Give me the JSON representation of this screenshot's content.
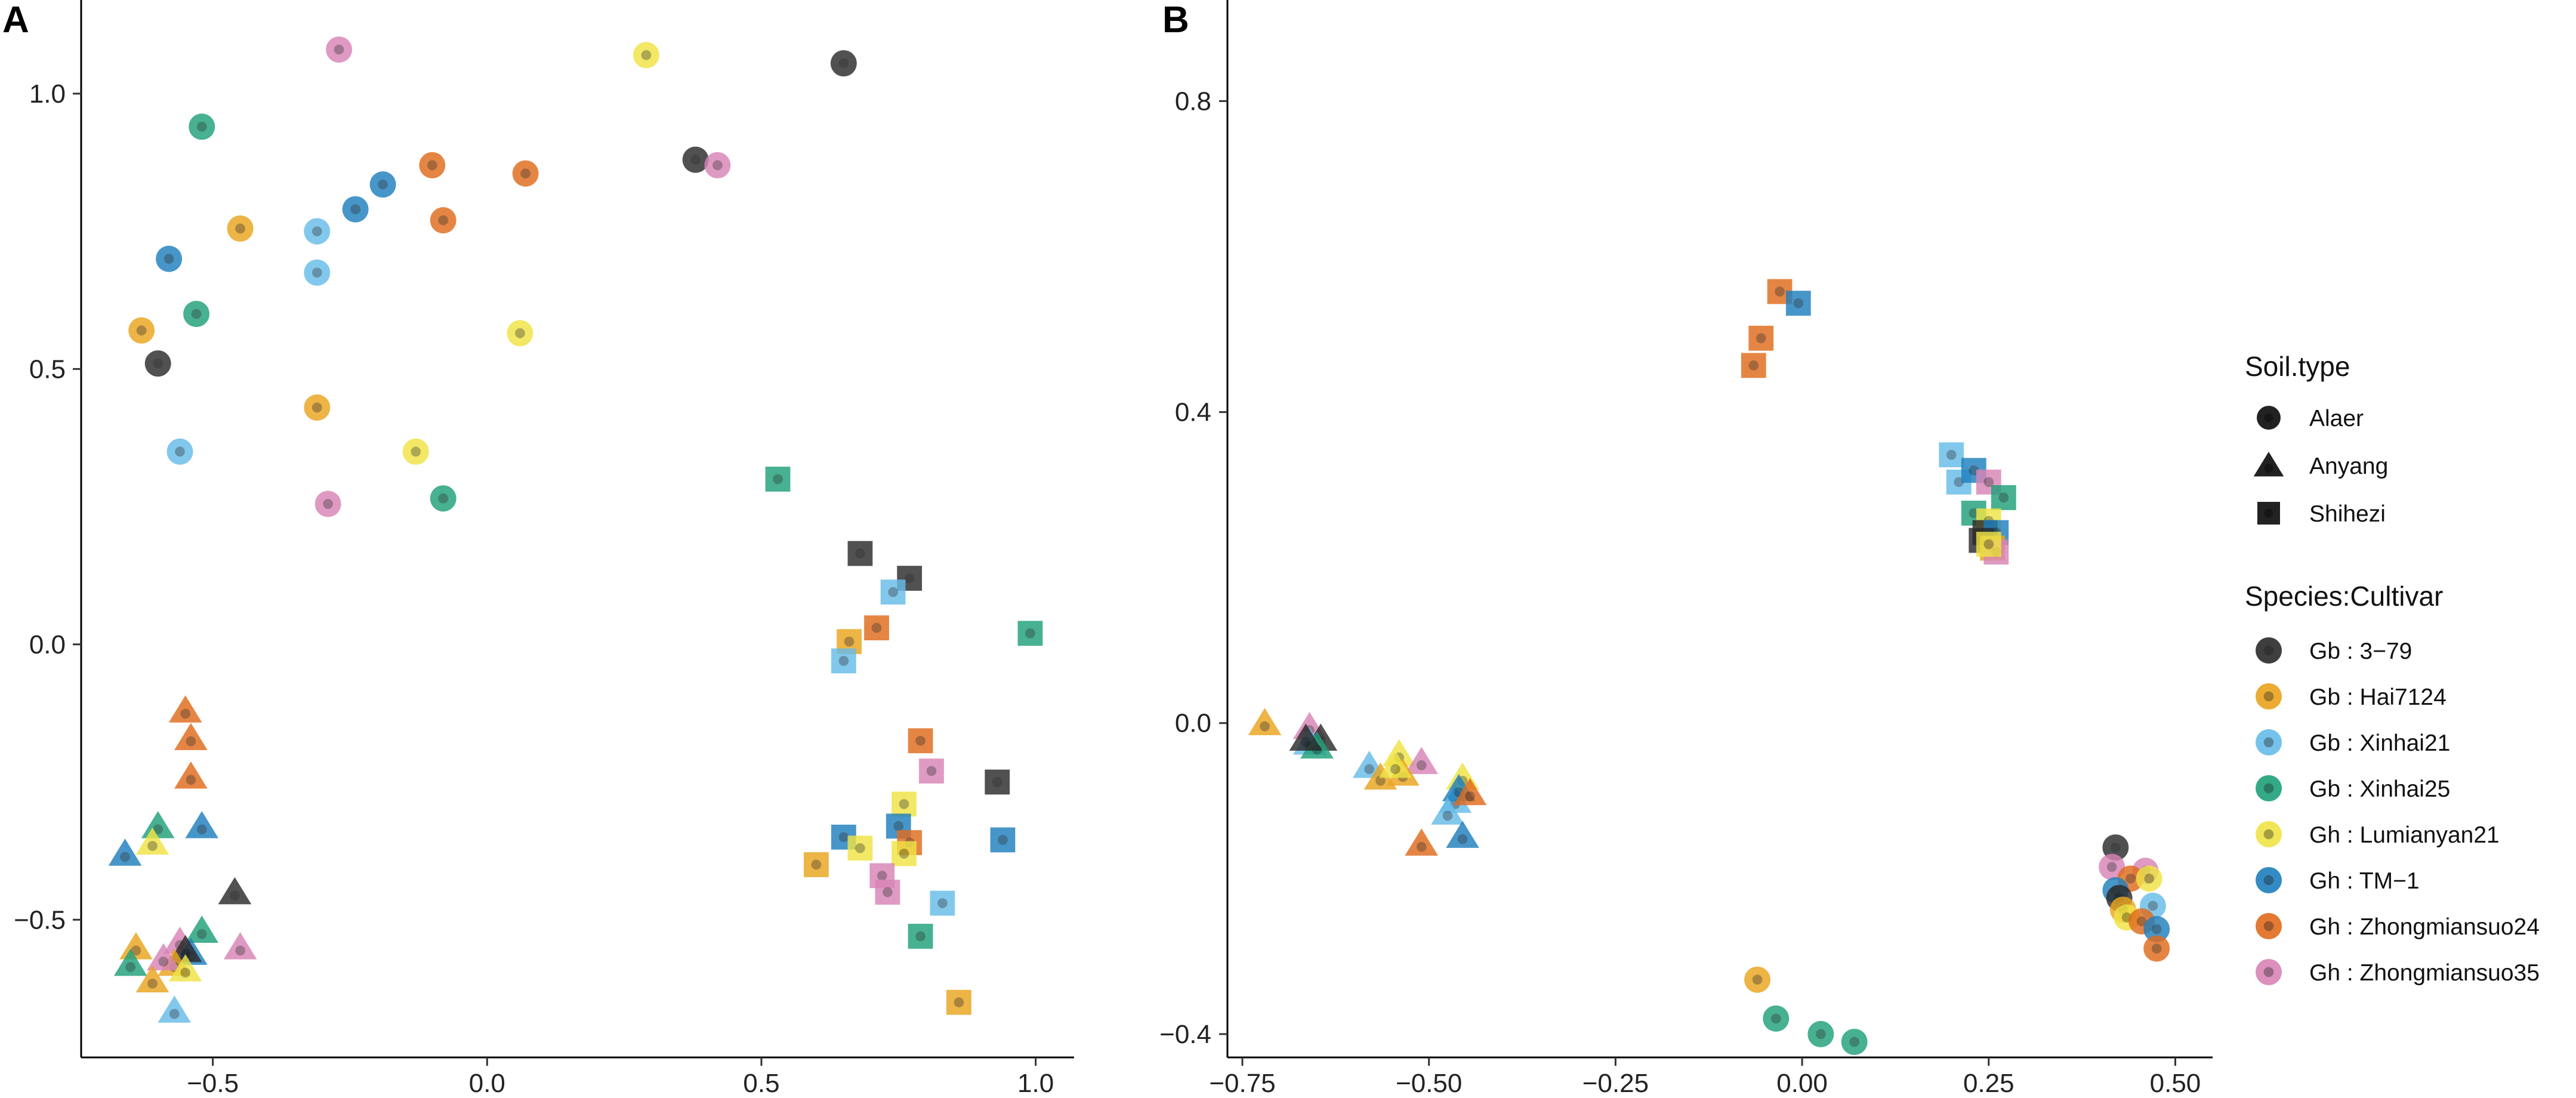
{
  "colors": {
    "3-79": "#2b2b2b",
    "Hai7124": "#eaa41e",
    "Xinhai21": "#67bce9",
    "Xinhai25": "#1fa07a",
    "Lumianyan21": "#f0e445",
    "TM-1": "#1f7fbe",
    "Zhongmiansuo24": "#e06b1c",
    "Zhongmiansuo35": "#d884b6"
  },
  "legend": {
    "soil_title": "Soil.type",
    "soil_items": [
      {
        "label": "Alaer",
        "shape": "circle"
      },
      {
        "label": "Anyang",
        "shape": "triangle"
      },
      {
        "label": "Shihezi",
        "shape": "square"
      }
    ],
    "species_title": "Species:Cultivar",
    "species_items": [
      {
        "label": "Gb : 3−79",
        "key": "3-79"
      },
      {
        "label": "Gb : Hai7124",
        "key": "Hai7124"
      },
      {
        "label": "Gb : Xinhai21",
        "key": "Xinhai21"
      },
      {
        "label": "Gb : Xinhai25",
        "key": "Xinhai25"
      },
      {
        "label": "Gh : Lumianyan21",
        "key": "Lumianyan21"
      },
      {
        "label": "Gh : TM−1",
        "key": "TM-1"
      },
      {
        "label": "Gh : Zhongmiansuo24",
        "key": "Zhongmiansuo24"
      },
      {
        "label": "Gh : Zhongmiansuo35",
        "key": "Zhongmiansuo35"
      }
    ]
  },
  "chart_data": [
    {
      "panel": "A",
      "type": "scatter",
      "xlim": [
        -0.74,
        1.07
      ],
      "ylim": [
        -0.75,
        1.17
      ],
      "xticks": [
        -0.5,
        0.0,
        0.5,
        1.0
      ],
      "xtick_labels": [
        "−0.5",
        "0.0",
        "0.5",
        "1.0"
      ],
      "yticks": [
        -0.5,
        0.0,
        0.5,
        1.0
      ],
      "ytick_labels": [
        "−0.5",
        "0.0",
        "0.5",
        "1.0"
      ],
      "points": [
        {
          "x": -0.27,
          "y": 1.08,
          "shape": "circle",
          "cultivar": "Zhongmiansuo35"
        },
        {
          "x": 0.29,
          "y": 1.07,
          "shape": "circle",
          "cultivar": "Lumianyan21"
        },
        {
          "x": 0.65,
          "y": 1.055,
          "shape": "circle",
          "cultivar": "3-79"
        },
        {
          "x": -0.52,
          "y": 0.94,
          "shape": "circle",
          "cultivar": "Xinhai25"
        },
        {
          "x": 0.38,
          "y": 0.88,
          "shape": "circle",
          "cultivar": "3-79"
        },
        {
          "x": 0.42,
          "y": 0.87,
          "shape": "circle",
          "cultivar": "Zhongmiansuo35"
        },
        {
          "x": -0.1,
          "y": 0.87,
          "shape": "circle",
          "cultivar": "Zhongmiansuo24"
        },
        {
          "x": 0.07,
          "y": 0.855,
          "shape": "circle",
          "cultivar": "Zhongmiansuo24"
        },
        {
          "x": -0.19,
          "y": 0.835,
          "shape": "circle",
          "cultivar": "TM-1"
        },
        {
          "x": -0.24,
          "y": 0.79,
          "shape": "circle",
          "cultivar": "TM-1"
        },
        {
          "x": -0.08,
          "y": 0.77,
          "shape": "circle",
          "cultivar": "Zhongmiansuo24"
        },
        {
          "x": -0.45,
          "y": 0.755,
          "shape": "circle",
          "cultivar": "Hai7124"
        },
        {
          "x": -0.31,
          "y": 0.75,
          "shape": "circle",
          "cultivar": "Xinhai21"
        },
        {
          "x": -0.58,
          "y": 0.7,
          "shape": "circle",
          "cultivar": "TM-1"
        },
        {
          "x": -0.31,
          "y": 0.675,
          "shape": "circle",
          "cultivar": "Xinhai21"
        },
        {
          "x": -0.53,
          "y": 0.6,
          "shape": "circle",
          "cultivar": "Xinhai25"
        },
        {
          "x": -0.63,
          "y": 0.57,
          "shape": "circle",
          "cultivar": "Hai7124"
        },
        {
          "x": 0.06,
          "y": 0.565,
          "shape": "circle",
          "cultivar": "Lumianyan21"
        },
        {
          "x": -0.6,
          "y": 0.51,
          "shape": "circle",
          "cultivar": "3-79"
        },
        {
          "x": -0.31,
          "y": 0.43,
          "shape": "circle",
          "cultivar": "Hai7124"
        },
        {
          "x": -0.56,
          "y": 0.35,
          "shape": "circle",
          "cultivar": "Xinhai21"
        },
        {
          "x": -0.13,
          "y": 0.35,
          "shape": "circle",
          "cultivar": "Lumianyan21"
        },
        {
          "x": -0.29,
          "y": 0.255,
          "shape": "circle",
          "cultivar": "Zhongmiansuo35"
        },
        {
          "x": -0.08,
          "y": 0.265,
          "shape": "circle",
          "cultivar": "Xinhai25"
        },
        {
          "x": 0.53,
          "y": 0.3,
          "shape": "square",
          "cultivar": "Xinhai25"
        },
        {
          "x": 0.68,
          "y": 0.165,
          "shape": "square",
          "cultivar": "3-79"
        },
        {
          "x": 0.77,
          "y": 0.12,
          "shape": "square",
          "cultivar": "3-79"
        },
        {
          "x": 0.74,
          "y": 0.095,
          "shape": "square",
          "cultivar": "Xinhai21"
        },
        {
          "x": 0.71,
          "y": 0.03,
          "shape": "square",
          "cultivar": "Zhongmiansuo24"
        },
        {
          "x": 0.66,
          "y": 0.005,
          "shape": "square",
          "cultivar": "Hai7124"
        },
        {
          "x": 0.65,
          "y": -0.03,
          "shape": "square",
          "cultivar": "Xinhai21"
        },
        {
          "x": 0.99,
          "y": 0.02,
          "shape": "square",
          "cultivar": "Xinhai25"
        },
        {
          "x": 0.79,
          "y": -0.175,
          "shape": "square",
          "cultivar": "Zhongmiansuo24"
        },
        {
          "x": 0.81,
          "y": -0.23,
          "shape": "square",
          "cultivar": "Zhongmiansuo35"
        },
        {
          "x": 0.93,
          "y": -0.25,
          "shape": "square",
          "cultivar": "3-79"
        },
        {
          "x": 0.76,
          "y": -0.29,
          "shape": "square",
          "cultivar": "Lumianyan21"
        },
        {
          "x": 0.75,
          "y": -0.33,
          "shape": "square",
          "cultivar": "TM-1"
        },
        {
          "x": 0.77,
          "y": -0.36,
          "shape": "square",
          "cultivar": "Zhongmiansuo24"
        },
        {
          "x": 0.76,
          "y": -0.38,
          "shape": "square",
          "cultivar": "Lumianyan21"
        },
        {
          "x": 0.65,
          "y": -0.35,
          "shape": "square",
          "cultivar": "TM-1"
        },
        {
          "x": 0.68,
          "y": -0.37,
          "shape": "square",
          "cultivar": "Lumianyan21"
        },
        {
          "x": 0.6,
          "y": -0.4,
          "shape": "square",
          "cultivar": "Hai7124"
        },
        {
          "x": 0.72,
          "y": -0.42,
          "shape": "square",
          "cultivar": "Zhongmiansuo35"
        },
        {
          "x": 0.73,
          "y": -0.45,
          "shape": "square",
          "cultivar": "Zhongmiansuo35"
        },
        {
          "x": 0.94,
          "y": -0.355,
          "shape": "square",
          "cultivar": "TM-1"
        },
        {
          "x": 0.83,
          "y": -0.47,
          "shape": "square",
          "cultivar": "Xinhai21"
        },
        {
          "x": 0.79,
          "y": -0.53,
          "shape": "square",
          "cultivar": "Xinhai25"
        },
        {
          "x": 0.86,
          "y": -0.65,
          "shape": "square",
          "cultivar": "Hai7124"
        },
        {
          "x": -0.55,
          "y": -0.12,
          "shape": "triangle",
          "cultivar": "Zhongmiansuo24"
        },
        {
          "x": -0.54,
          "y": -0.17,
          "shape": "triangle",
          "cultivar": "Zhongmiansuo24"
        },
        {
          "x": -0.54,
          "y": -0.24,
          "shape": "triangle",
          "cultivar": "Zhongmiansuo24"
        },
        {
          "x": -0.6,
          "y": -0.33,
          "shape": "triangle",
          "cultivar": "Xinhai25"
        },
        {
          "x": -0.61,
          "y": -0.36,
          "shape": "triangle",
          "cultivar": "Lumianyan21"
        },
        {
          "x": -0.52,
          "y": -0.33,
          "shape": "triangle",
          "cultivar": "TM-1"
        },
        {
          "x": -0.66,
          "y": -0.38,
          "shape": "triangle",
          "cultivar": "TM-1"
        },
        {
          "x": -0.46,
          "y": -0.45,
          "shape": "triangle",
          "cultivar": "3-79"
        },
        {
          "x": -0.52,
          "y": -0.52,
          "shape": "triangle",
          "cultivar": "Xinhai25"
        },
        {
          "x": -0.56,
          "y": -0.54,
          "shape": "triangle",
          "cultivar": "Zhongmiansuo35"
        },
        {
          "x": -0.54,
          "y": -0.56,
          "shape": "triangle",
          "cultivar": "TM-1"
        },
        {
          "x": -0.55,
          "y": -0.555,
          "shape": "triangle",
          "cultivar": "3-79"
        },
        {
          "x": -0.57,
          "y": -0.58,
          "shape": "triangle",
          "cultivar": "Hai7124"
        },
        {
          "x": -0.59,
          "y": -0.57,
          "shape": "triangle",
          "cultivar": "Zhongmiansuo35"
        },
        {
          "x": -0.45,
          "y": -0.55,
          "shape": "triangle",
          "cultivar": "Zhongmiansuo35"
        },
        {
          "x": -0.64,
          "y": -0.55,
          "shape": "triangle",
          "cultivar": "Hai7124"
        },
        {
          "x": -0.65,
          "y": -0.58,
          "shape": "triangle",
          "cultivar": "Xinhai25"
        },
        {
          "x": -0.55,
          "y": -0.59,
          "shape": "triangle",
          "cultivar": "Lumianyan21"
        },
        {
          "x": -0.61,
          "y": -0.61,
          "shape": "triangle",
          "cultivar": "Hai7124"
        },
        {
          "x": -0.57,
          "y": -0.665,
          "shape": "triangle",
          "cultivar": "Xinhai21"
        }
      ]
    },
    {
      "panel": "B",
      "type": "scatter",
      "xlim": [
        -0.77,
        0.55
      ],
      "ylim": [
        -0.43,
        0.93
      ],
      "xticks": [
        -0.75,
        -0.5,
        -0.25,
        0.0,
        0.25,
        0.5
      ],
      "xtick_labels": [
        "−0.75",
        "−0.50",
        "−0.25",
        "0.00",
        "0.25",
        "0.50"
      ],
      "yticks": [
        -0.4,
        0.0,
        0.4,
        0.8
      ],
      "ytick_labels": [
        "−0.4",
        "0.0",
        "0.4",
        "0.8"
      ],
      "points": [
        {
          "x": -0.03,
          "y": 0.555,
          "shape": "square",
          "cultivar": "Zhongmiansuo24"
        },
        {
          "x": -0.005,
          "y": 0.54,
          "shape": "square",
          "cultivar": "TM-1"
        },
        {
          "x": -0.055,
          "y": 0.495,
          "shape": "square",
          "cultivar": "Zhongmiansuo24"
        },
        {
          "x": -0.065,
          "y": 0.46,
          "shape": "square",
          "cultivar": "Zhongmiansuo24"
        },
        {
          "x": 0.2,
          "y": 0.345,
          "shape": "square",
          "cultivar": "Xinhai21"
        },
        {
          "x": 0.21,
          "y": 0.31,
          "shape": "square",
          "cultivar": "Xinhai21"
        },
        {
          "x": 0.23,
          "y": 0.325,
          "shape": "square",
          "cultivar": "TM-1"
        },
        {
          "x": 0.25,
          "y": 0.31,
          "shape": "square",
          "cultivar": "Zhongmiansuo35"
        },
        {
          "x": 0.27,
          "y": 0.29,
          "shape": "square",
          "cultivar": "Xinhai25"
        },
        {
          "x": 0.23,
          "y": 0.27,
          "shape": "square",
          "cultivar": "Xinhai25"
        },
        {
          "x": 0.25,
          "y": 0.26,
          "shape": "square",
          "cultivar": "Lumianyan21"
        },
        {
          "x": 0.245,
          "y": 0.245,
          "shape": "square",
          "cultivar": "3-79"
        },
        {
          "x": 0.26,
          "y": 0.245,
          "shape": "square",
          "cultivar": "TM-1"
        },
        {
          "x": 0.24,
          "y": 0.235,
          "shape": "square",
          "cultivar": "3-79"
        },
        {
          "x": 0.255,
          "y": 0.225,
          "shape": "square",
          "cultivar": "Hai7124"
        },
        {
          "x": 0.26,
          "y": 0.22,
          "shape": "square",
          "cultivar": "Zhongmiansuo35"
        },
        {
          "x": 0.25,
          "y": 0.23,
          "shape": "square",
          "cultivar": "Lumianyan21"
        },
        {
          "x": 0.42,
          "y": -0.16,
          "shape": "circle",
          "cultivar": "3-79"
        },
        {
          "x": 0.415,
          "y": -0.185,
          "shape": "circle",
          "cultivar": "Zhongmiansuo35"
        },
        {
          "x": 0.46,
          "y": -0.19,
          "shape": "circle",
          "cultivar": "Zhongmiansuo35"
        },
        {
          "x": 0.44,
          "y": -0.2,
          "shape": "circle",
          "cultivar": "Zhongmiansuo24"
        },
        {
          "x": 0.465,
          "y": -0.2,
          "shape": "circle",
          "cultivar": "Lumianyan21"
        },
        {
          "x": 0.42,
          "y": -0.215,
          "shape": "circle",
          "cultivar": "TM-1"
        },
        {
          "x": 0.425,
          "y": -0.225,
          "shape": "circle",
          "cultivar": "3-79"
        },
        {
          "x": 0.47,
          "y": -0.235,
          "shape": "circle",
          "cultivar": "Xinhai21"
        },
        {
          "x": 0.43,
          "y": -0.24,
          "shape": "circle",
          "cultivar": "Hai7124"
        },
        {
          "x": 0.435,
          "y": -0.25,
          "shape": "circle",
          "cultivar": "Lumianyan21"
        },
        {
          "x": 0.455,
          "y": -0.255,
          "shape": "circle",
          "cultivar": "Zhongmiansuo24"
        },
        {
          "x": 0.475,
          "y": -0.265,
          "shape": "circle",
          "cultivar": "TM-1"
        },
        {
          "x": 0.475,
          "y": -0.29,
          "shape": "circle",
          "cultivar": "Zhongmiansuo24"
        },
        {
          "x": -0.06,
          "y": -0.33,
          "shape": "circle",
          "cultivar": "Hai7124"
        },
        {
          "x": -0.035,
          "y": -0.38,
          "shape": "circle",
          "cultivar": "Xinhai25"
        },
        {
          "x": 0.025,
          "y": -0.4,
          "shape": "circle",
          "cultivar": "Xinhai25"
        },
        {
          "x": 0.07,
          "y": -0.41,
          "shape": "circle",
          "cultivar": "Xinhai25"
        },
        {
          "x": -0.72,
          "y": 0.0,
          "shape": "triangle",
          "cultivar": "Hai7124"
        },
        {
          "x": -0.66,
          "y": -0.005,
          "shape": "triangle",
          "cultivar": "Zhongmiansuo35"
        },
        {
          "x": -0.645,
          "y": -0.02,
          "shape": "triangle",
          "cultivar": "3-79"
        },
        {
          "x": -0.66,
          "y": -0.025,
          "shape": "triangle",
          "cultivar": "Xinhai21"
        },
        {
          "x": -0.65,
          "y": -0.03,
          "shape": "triangle",
          "cultivar": "Xinhai25"
        },
        {
          "x": -0.665,
          "y": -0.02,
          "shape": "triangle",
          "cultivar": "3-79"
        },
        {
          "x": -0.58,
          "y": -0.055,
          "shape": "triangle",
          "cultivar": "Xinhai21"
        },
        {
          "x": -0.54,
          "y": -0.04,
          "shape": "triangle",
          "cultivar": "Lumianyan21"
        },
        {
          "x": -0.51,
          "y": -0.05,
          "shape": "triangle",
          "cultivar": "Zhongmiansuo35"
        },
        {
          "x": -0.565,
          "y": -0.07,
          "shape": "triangle",
          "cultivar": "Hai7124"
        },
        {
          "x": -0.535,
          "y": -0.065,
          "shape": "triangle",
          "cultivar": "Hai7124"
        },
        {
          "x": -0.545,
          "y": -0.055,
          "shape": "triangle",
          "cultivar": "Lumianyan21"
        },
        {
          "x": -0.455,
          "y": -0.07,
          "shape": "triangle",
          "cultivar": "Lumianyan21"
        },
        {
          "x": -0.465,
          "y": -0.1,
          "shape": "triangle",
          "cultivar": "Xinhai21"
        },
        {
          "x": -0.46,
          "y": -0.085,
          "shape": "triangle",
          "cultivar": "TM-1"
        },
        {
          "x": -0.445,
          "y": -0.09,
          "shape": "triangle",
          "cultivar": "Zhongmiansuo24"
        },
        {
          "x": -0.475,
          "y": -0.115,
          "shape": "triangle",
          "cultivar": "Xinhai21"
        },
        {
          "x": -0.455,
          "y": -0.145,
          "shape": "triangle",
          "cultivar": "TM-1"
        },
        {
          "x": -0.51,
          "y": -0.155,
          "shape": "triangle",
          "cultivar": "Zhongmiansuo24"
        }
      ]
    }
  ]
}
